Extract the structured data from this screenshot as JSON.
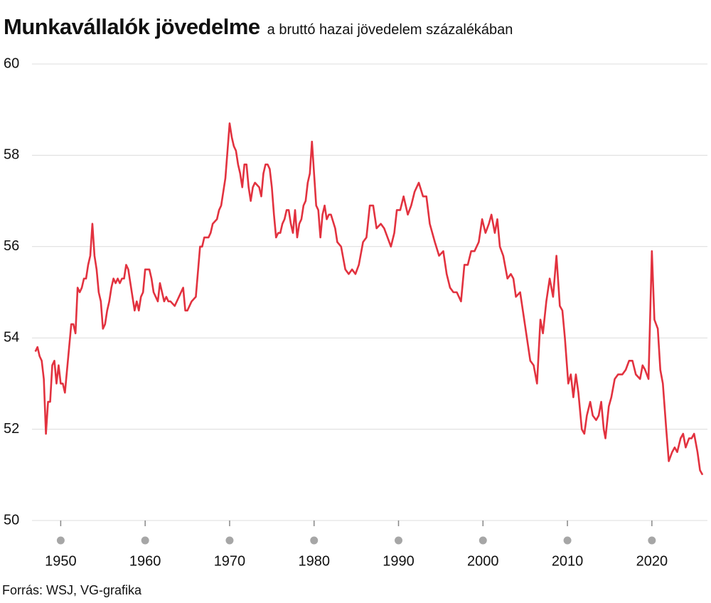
{
  "chart_data": {
    "type": "line",
    "title": "Munkavállalók jövedelme",
    "subtitle": "a bruttó hazai jövedelem százalékában",
    "source": "Forrás: WSJ, VG-grafika",
    "color": "#e2323f",
    "grid": true,
    "xlim": [
      1946.6,
      2027
    ],
    "xticks": [
      1950,
      1960,
      1970,
      1980,
      1990,
      2000,
      2010,
      2020
    ],
    "ylim": [
      50,
      60
    ],
    "yticks": [
      50,
      52,
      54,
      56,
      58,
      60
    ],
    "x": [
      1947,
      1947.25,
      1947.5,
      1947.75,
      1948,
      1948.25,
      1948.5,
      1948.75,
      1949,
      1949.25,
      1949.5,
      1949.75,
      1950,
      1950.25,
      1950.5,
      1950.75,
      1951,
      1951.25,
      1951.5,
      1951.75,
      1952,
      1952.25,
      1952.5,
      1952.75,
      1953,
      1953.25,
      1953.5,
      1953.75,
      1954,
      1954.25,
      1954.5,
      1954.75,
      1955,
      1955.25,
      1955.5,
      1955.75,
      1956,
      1956.25,
      1956.5,
      1956.75,
      1957,
      1957.25,
      1957.5,
      1957.75,
      1958,
      1958.25,
      1958.5,
      1958.75,
      1959,
      1959.25,
      1959.5,
      1959.75,
      1960,
      1960.5,
      1960.75,
      1961,
      1961.25,
      1961.5,
      1961.75,
      1962,
      1962.25,
      1962.5,
      1962.75,
      1963,
      1963.5,
      1964,
      1964.5,
      1964.75,
      1965,
      1965.5,
      1966,
      1966.5,
      1966.75,
      1967,
      1967.5,
      1967.75,
      1968,
      1968.5,
      1968.75,
      1969,
      1969.5,
      1970,
      1970.25,
      1970.5,
      1970.75,
      1971,
      1971.25,
      1971.5,
      1971.75,
      1972,
      1972.25,
      1972.5,
      1972.75,
      1973,
      1973.5,
      1973.75,
      1974,
      1974.25,
      1974.5,
      1974.75,
      1975,
      1975.25,
      1975.5,
      1975.75,
      1976,
      1976.25,
      1976.5,
      1976.75,
      1977,
      1977.25,
      1977.5,
      1977.75,
      1978,
      1978.25,
      1978.5,
      1978.75,
      1979,
      1979.25,
      1979.5,
      1979.75,
      1980,
      1980.25,
      1980.5,
      1980.75,
      1981,
      1981.25,
      1981.5,
      1981.75,
      1982,
      1982.5,
      1982.75,
      1983.2,
      1983.7,
      1984.1,
      1984.5,
      1984.9,
      1985.3,
      1985.8,
      1986.2,
      1986.6,
      1987.0,
      1987.4,
      1987.9,
      1988.3,
      1988.7,
      1989.1,
      1989.5,
      1989.8,
      1990.2,
      1990.6,
      1991.1,
      1991.5,
      1991.9,
      1992.4,
      1992.9,
      1993.3,
      1993.7,
      1994.3,
      1994.8,
      1995.3,
      1995.7,
      1996.1,
      1996.5,
      1996.9,
      1997.4,
      1997.8,
      1998.2,
      1998.6,
      1999.0,
      1999.5,
      1999.9,
      2000.3,
      2000.7,
      2001.0,
      2001.4,
      2001.7,
      2002.0,
      2002.4,
      2002.9,
      2003.3,
      2003.6,
      2003.9,
      2004.4,
      2004.8,
      2005.2,
      2005.6,
      2006.0,
      2006.4,
      2006.8,
      2007.1,
      2007.5,
      2007.9,
      2008.3,
      2008.7,
      2009.1,
      2009.4,
      2009.7,
      2010.1,
      2010.4,
      2010.7,
      2011.0,
      2011.3,
      2011.7,
      2012.0,
      2012.3,
      2012.7,
      2013.0,
      2013.4,
      2013.7,
      2014.0,
      2014.3,
      2014.5,
      2014.9,
      2015.2,
      2015.6,
      2016.0,
      2016.5,
      2016.9,
      2017.3,
      2017.7,
      2018.1,
      2018.6,
      2018.9,
      2019.2,
      2019.6,
      2020.0,
      2020.3,
      2020.7,
      2021.0,
      2021.3,
      2021.7,
      2022.0,
      2022.4,
      2022.7,
      2023.0,
      2023.4,
      2023.7,
      2024.0,
      2024.4,
      2024.7,
      2025.0,
      2025.4,
      2025.7,
      2026.0
    ],
    "values": [
      53.7,
      53.8,
      53.6,
      53.5,
      53.1,
      51.9,
      52.6,
      52.6,
      53.4,
      53.5,
      53.0,
      53.4,
      53.0,
      53.0,
      52.8,
      53.3,
      53.8,
      54.3,
      54.3,
      54.1,
      55.1,
      55.0,
      55.1,
      55.3,
      55.3,
      55.6,
      55.8,
      56.5,
      55.8,
      55.5,
      55.0,
      54.8,
      54.2,
      54.3,
      54.6,
      54.8,
      55.1,
      55.3,
      55.2,
      55.3,
      55.2,
      55.3,
      55.3,
      55.6,
      55.5,
      55.2,
      54.9,
      54.6,
      54.8,
      54.6,
      54.9,
      55.0,
      55.5,
      55.5,
      55.3,
      55.0,
      54.9,
      54.8,
      55.2,
      55.0,
      54.8,
      54.9,
      54.8,
      54.8,
      54.7,
      54.9,
      55.1,
      54.6,
      54.6,
      54.8,
      54.9,
      56.0,
      56.0,
      56.2,
      56.2,
      56.3,
      56.5,
      56.6,
      56.8,
      56.9,
      57.5,
      58.7,
      58.4,
      58.2,
      58.1,
      57.8,
      57.6,
      57.3,
      57.8,
      57.8,
      57.3,
      57.0,
      57.3,
      57.4,
      57.3,
      57.1,
      57.6,
      57.8,
      57.8,
      57.7,
      57.3,
      56.7,
      56.2,
      56.3,
      56.3,
      56.5,
      56.6,
      56.8,
      56.8,
      56.5,
      56.3,
      56.8,
      56.2,
      56.5,
      56.6,
      56.9,
      57.0,
      57.4,
      57.6,
      58.3,
      57.6,
      56.9,
      56.8,
      56.2,
      56.7,
      56.9,
      56.6,
      56.7,
      56.7,
      56.4,
      56.1,
      56.0,
      55.5,
      55.4,
      55.5,
      55.4,
      55.6,
      56.1,
      56.2,
      56.9,
      56.9,
      56.4,
      56.5,
      56.4,
      56.2,
      56.0,
      56.3,
      56.8,
      56.8,
      57.1,
      56.7,
      56.9,
      57.2,
      57.4,
      57.1,
      57.1,
      56.5,
      56.1,
      55.8,
      55.9,
      55.4,
      55.1,
      55.0,
      55.0,
      54.8,
      55.6,
      55.6,
      55.9,
      55.9,
      56.1,
      56.6,
      56.3,
      56.5,
      56.7,
      56.3,
      56.6,
      56.0,
      55.8,
      55.3,
      55.4,
      55.3,
      54.9,
      55.0,
      54.5,
      54.0,
      53.5,
      53.4,
      53.0,
      54.4,
      54.1,
      54.8,
      55.3,
      54.9,
      55.8,
      54.7,
      54.6,
      54.0,
      53.0,
      53.2,
      52.7,
      53.2,
      52.8,
      52.0,
      51.9,
      52.3,
      52.6,
      52.3,
      52.2,
      52.3,
      52.6,
      52.0,
      51.8,
      52.5,
      52.7,
      53.1,
      53.2,
      53.2,
      53.3,
      53.5,
      53.5,
      53.2,
      53.1,
      53.4,
      53.3,
      53.1,
      55.9,
      54.4,
      54.2,
      53.3,
      53.0,
      52.0,
      51.3,
      51.5,
      51.6,
      51.5,
      51.8,
      51.9,
      51.6,
      51.8,
      51.8,
      51.9,
      51.5,
      51.1,
      51.0
    ]
  }
}
